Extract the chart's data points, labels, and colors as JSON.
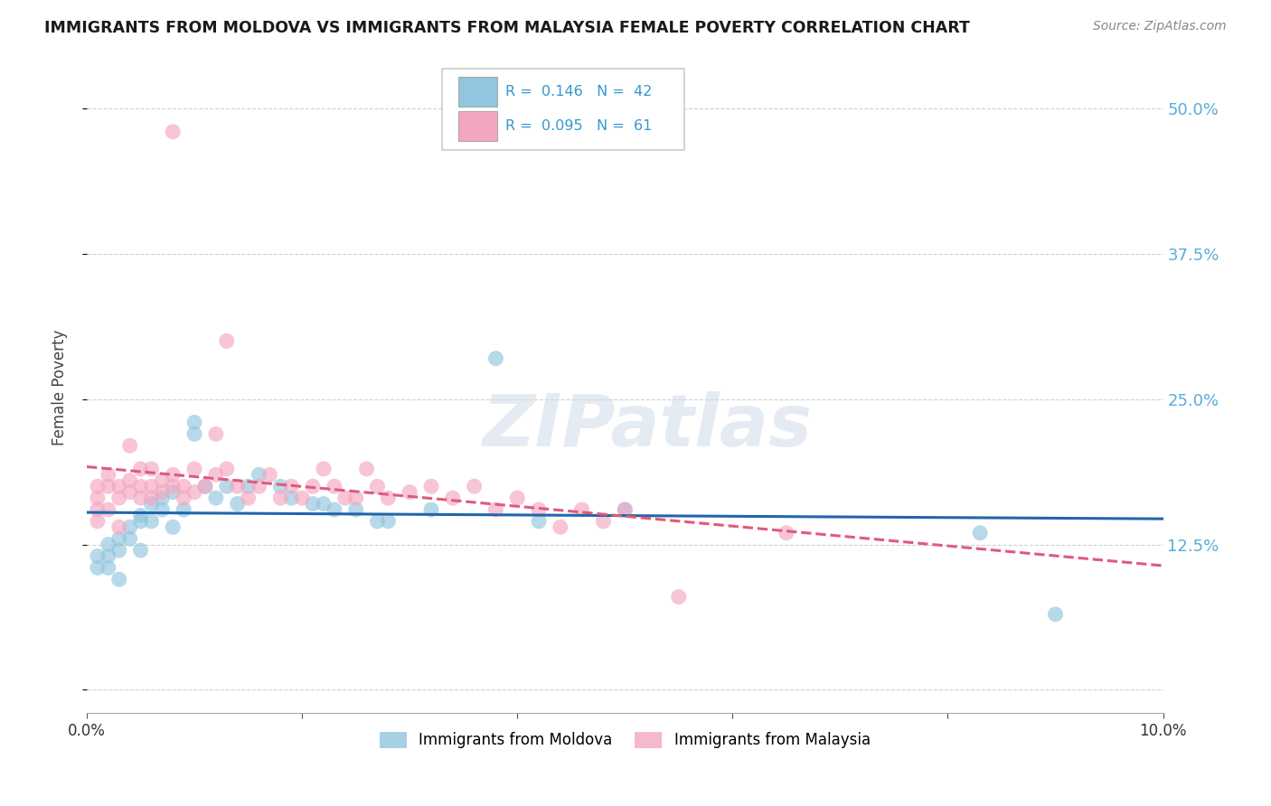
{
  "title": "IMMIGRANTS FROM MOLDOVA VS IMMIGRANTS FROM MALAYSIA FEMALE POVERTY CORRELATION CHART",
  "source": "Source: ZipAtlas.com",
  "ylabel": "Female Poverty",
  "xlim": [
    0.0,
    0.1
  ],
  "ylim": [
    -0.02,
    0.54
  ],
  "yticks": [
    0.0,
    0.125,
    0.25,
    0.375,
    0.5
  ],
  "ytick_labels": [
    "",
    "12.5%",
    "25.0%",
    "37.5%",
    "50.0%"
  ],
  "xticks": [
    0.0,
    0.02,
    0.04,
    0.06,
    0.08,
    0.1
  ],
  "xtick_labels": [
    "0.0%",
    "",
    "",
    "",
    "",
    "10.0%"
  ],
  "moldova_color": "#92c5de",
  "malaysia_color": "#f4a6c0",
  "moldova_line_color": "#2166ac",
  "malaysia_line_color": "#e05a7a",
  "moldova_R": 0.146,
  "moldova_N": 42,
  "malaysia_R": 0.095,
  "malaysia_N": 61,
  "background_color": "#ffffff",
  "grid_color": "#d0d0d0",
  "watermark": "ZIPatlas",
  "moldova_scatter_x": [
    0.001,
    0.001,
    0.002,
    0.002,
    0.002,
    0.003,
    0.003,
    0.003,
    0.004,
    0.004,
    0.005,
    0.005,
    0.005,
    0.006,
    0.006,
    0.007,
    0.007,
    0.008,
    0.008,
    0.009,
    0.01,
    0.01,
    0.011,
    0.012,
    0.013,
    0.014,
    0.015,
    0.016,
    0.018,
    0.019,
    0.021,
    0.022,
    0.023,
    0.025,
    0.027,
    0.028,
    0.032,
    0.038,
    0.042,
    0.05,
    0.083,
    0.09
  ],
  "moldova_scatter_y": [
    0.105,
    0.115,
    0.115,
    0.125,
    0.105,
    0.13,
    0.12,
    0.095,
    0.14,
    0.13,
    0.15,
    0.145,
    0.12,
    0.145,
    0.16,
    0.165,
    0.155,
    0.14,
    0.17,
    0.155,
    0.22,
    0.23,
    0.175,
    0.165,
    0.175,
    0.16,
    0.175,
    0.185,
    0.175,
    0.165,
    0.16,
    0.16,
    0.155,
    0.155,
    0.145,
    0.145,
    0.155,
    0.285,
    0.145,
    0.155,
    0.135,
    0.065
  ],
  "malaysia_scatter_x": [
    0.001,
    0.001,
    0.001,
    0.001,
    0.002,
    0.002,
    0.002,
    0.003,
    0.003,
    0.003,
    0.004,
    0.004,
    0.004,
    0.005,
    0.005,
    0.005,
    0.006,
    0.006,
    0.006,
    0.007,
    0.007,
    0.008,
    0.008,
    0.009,
    0.009,
    0.01,
    0.01,
    0.011,
    0.012,
    0.012,
    0.013,
    0.013,
    0.014,
    0.015,
    0.016,
    0.017,
    0.018,
    0.019,
    0.02,
    0.021,
    0.022,
    0.023,
    0.024,
    0.025,
    0.026,
    0.027,
    0.028,
    0.03,
    0.032,
    0.034,
    0.036,
    0.038,
    0.04,
    0.042,
    0.044,
    0.046,
    0.048,
    0.05,
    0.055,
    0.065,
    0.008
  ],
  "malaysia_scatter_y": [
    0.165,
    0.175,
    0.145,
    0.155,
    0.175,
    0.155,
    0.185,
    0.175,
    0.14,
    0.165,
    0.18,
    0.21,
    0.17,
    0.19,
    0.165,
    0.175,
    0.19,
    0.165,
    0.175,
    0.17,
    0.18,
    0.175,
    0.185,
    0.165,
    0.175,
    0.19,
    0.17,
    0.175,
    0.185,
    0.22,
    0.19,
    0.3,
    0.175,
    0.165,
    0.175,
    0.185,
    0.165,
    0.175,
    0.165,
    0.175,
    0.19,
    0.175,
    0.165,
    0.165,
    0.19,
    0.175,
    0.165,
    0.17,
    0.175,
    0.165,
    0.175,
    0.155,
    0.165,
    0.155,
    0.14,
    0.155,
    0.145,
    0.155,
    0.08,
    0.135,
    0.48
  ]
}
